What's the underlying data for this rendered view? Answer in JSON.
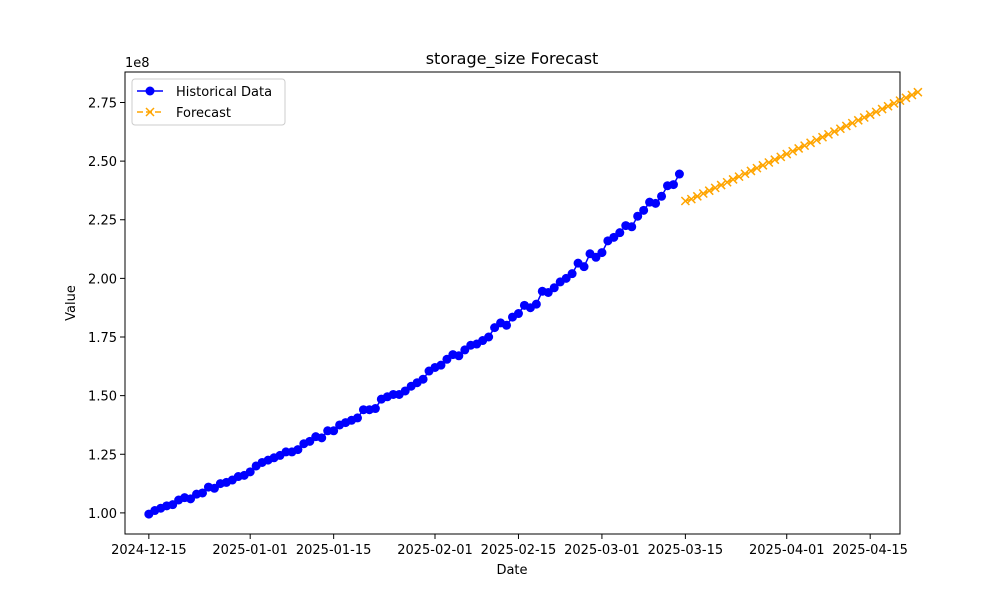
{
  "chart_data": {
    "type": "line",
    "title": "storage_size Forecast",
    "xlabel": "Date",
    "ylabel": "Value",
    "y_multiplier_label": "1e8",
    "y_scale": 100000000,
    "xlim": [
      "2024-12-11",
      "2025-04-20"
    ],
    "ylim": [
      0.91,
      2.88
    ],
    "x_ticks": [
      "2024-12-15",
      "2025-01-01",
      "2025-01-15",
      "2025-02-01",
      "2025-02-15",
      "2025-03-01",
      "2025-03-15",
      "2025-04-01",
      "2025-04-15"
    ],
    "y_ticks": [
      1.0,
      1.25,
      1.5,
      1.75,
      2.0,
      2.25,
      2.5,
      2.75
    ],
    "y_tick_labels": [
      "1.00",
      "1.25",
      "1.50",
      "1.75",
      "2.00",
      "2.25",
      "2.50",
      "2.75"
    ],
    "legend_position": "upper-left",
    "series": [
      {
        "name": "Historical Data",
        "color": "#0000ff",
        "marker": "circle",
        "line_style": "solid",
        "start_date": "2024-12-15",
        "step_days": 1,
        "values": [
          0.995,
          1.01,
          1.02,
          1.03,
          1.035,
          1.055,
          1.065,
          1.06,
          1.08,
          1.085,
          1.11,
          1.105,
          1.125,
          1.13,
          1.14,
          1.155,
          1.16,
          1.175,
          1.2,
          1.215,
          1.225,
          1.235,
          1.245,
          1.26,
          1.26,
          1.27,
          1.295,
          1.305,
          1.325,
          1.32,
          1.35,
          1.35,
          1.375,
          1.385,
          1.395,
          1.405,
          1.44,
          1.44,
          1.445,
          1.485,
          1.495,
          1.505,
          1.505,
          1.52,
          1.54,
          1.555,
          1.57,
          1.605,
          1.62,
          1.63,
          1.655,
          1.675,
          1.67,
          1.695,
          1.715,
          1.72,
          1.735,
          1.75,
          1.79,
          1.81,
          1.8,
          1.835,
          1.85,
          1.885,
          1.875,
          1.89,
          1.945,
          1.94,
          1.96,
          1.985,
          2.0,
          2.02,
          2.065,
          2.05,
          2.105,
          2.09,
          2.11,
          2.16,
          2.175,
          2.195,
          2.225,
          2.22,
          2.265,
          2.29,
          2.325,
          2.32,
          2.35,
          2.395,
          2.4,
          2.445
        ]
      },
      {
        "name": "Forecast",
        "color": "#ffa500",
        "marker": "x",
        "line_style": "dashed",
        "start_date": "2025-03-15",
        "step_days": 1,
        "values": [
          2.33,
          2.338,
          2.35,
          2.362,
          2.374,
          2.386,
          2.398,
          2.41,
          2.422,
          2.434,
          2.446,
          2.458,
          2.47,
          2.482,
          2.494,
          2.506,
          2.518,
          2.53,
          2.542,
          2.554,
          2.566,
          2.578,
          2.59,
          2.602,
          2.614,
          2.626,
          2.638,
          2.65,
          2.662,
          2.674,
          2.686,
          2.698,
          2.71,
          2.722,
          2.734,
          2.746,
          2.758,
          2.77,
          2.782,
          2.794
        ]
      }
    ]
  }
}
